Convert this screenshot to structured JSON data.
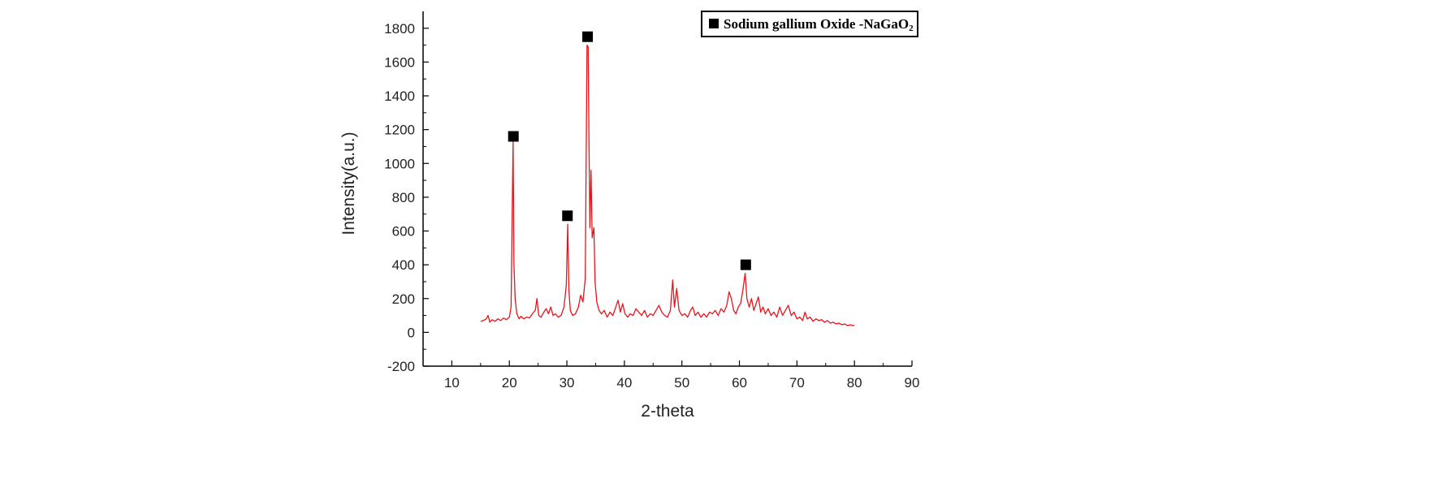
{
  "chart_data": {
    "type": "line",
    "title": "",
    "xlabel": "2-theta",
    "ylabel": "Intensity(a.u.)",
    "xlim": [
      5,
      90
    ],
    "ylim": [
      -200,
      1900
    ],
    "x_ticks": [
      10,
      20,
      30,
      40,
      50,
      60,
      70,
      80,
      90
    ],
    "y_ticks": [
      -200,
      0,
      200,
      400,
      600,
      800,
      1000,
      1200,
      1400,
      1600,
      1800
    ],
    "grid": false,
    "legend": {
      "position": "top-right",
      "entries": [
        {
          "marker": "square",
          "color": "#000000",
          "label_main": "Sodium gallium Oxide -NaGaO",
          "label_sub": "2"
        }
      ]
    },
    "series": [
      {
        "name": "Sodium gallium Oxide -NaGaO2",
        "color": "#e8141b",
        "points": [
          [
            15.0,
            65
          ],
          [
            15.5,
            70
          ],
          [
            16.0,
            80
          ],
          [
            16.3,
            100
          ],
          [
            16.6,
            60
          ],
          [
            17.0,
            75
          ],
          [
            17.5,
            65
          ],
          [
            18.0,
            80
          ],
          [
            18.5,
            70
          ],
          [
            19.0,
            85
          ],
          [
            19.5,
            75
          ],
          [
            20.0,
            90
          ],
          [
            20.3,
            150
          ],
          [
            20.5,
            730
          ],
          [
            20.65,
            1130
          ],
          [
            20.8,
            400
          ],
          [
            21.0,
            200
          ],
          [
            21.3,
            110
          ],
          [
            21.7,
            80
          ],
          [
            22.0,
            95
          ],
          [
            22.5,
            80
          ],
          [
            23.0,
            90
          ],
          [
            23.5,
            85
          ],
          [
            24.0,
            110
          ],
          [
            24.5,
            130
          ],
          [
            24.8,
            200
          ],
          [
            25.1,
            100
          ],
          [
            25.5,
            90
          ],
          [
            26.0,
            120
          ],
          [
            26.4,
            140
          ],
          [
            26.8,
            110
          ],
          [
            27.2,
            150
          ],
          [
            27.6,
            100
          ],
          [
            28.0,
            110
          ],
          [
            28.5,
            90
          ],
          [
            29.0,
            100
          ],
          [
            29.5,
            150
          ],
          [
            29.9,
            280
          ],
          [
            30.15,
            640
          ],
          [
            30.35,
            250
          ],
          [
            30.6,
            130
          ],
          [
            31.0,
            100
          ],
          [
            31.5,
            110
          ],
          [
            32.0,
            150
          ],
          [
            32.4,
            220
          ],
          [
            32.8,
            180
          ],
          [
            33.2,
            320
          ],
          [
            33.5,
            1700
          ],
          [
            33.7,
            1690
          ],
          [
            33.85,
            1100
          ],
          [
            34.0,
            620
          ],
          [
            34.2,
            960
          ],
          [
            34.4,
            560
          ],
          [
            34.7,
            620
          ],
          [
            34.9,
            300
          ],
          [
            35.2,
            180
          ],
          [
            35.6,
            130
          ],
          [
            36.0,
            110
          ],
          [
            36.5,
            130
          ],
          [
            37.0,
            90
          ],
          [
            37.5,
            120
          ],
          [
            38.0,
            100
          ],
          [
            38.5,
            150
          ],
          [
            38.9,
            190
          ],
          [
            39.3,
            120
          ],
          [
            39.7,
            170
          ],
          [
            40.1,
            110
          ],
          [
            40.6,
            90
          ],
          [
            41.0,
            110
          ],
          [
            41.5,
            100
          ],
          [
            42.0,
            140
          ],
          [
            42.5,
            120
          ],
          [
            43.0,
            100
          ],
          [
            43.5,
            130
          ],
          [
            44.0,
            90
          ],
          [
            44.5,
            110
          ],
          [
            45.0,
            100
          ],
          [
            45.5,
            130
          ],
          [
            46.0,
            160
          ],
          [
            46.5,
            120
          ],
          [
            47.0,
            100
          ],
          [
            47.5,
            90
          ],
          [
            48.0,
            130
          ],
          [
            48.4,
            310
          ],
          [
            48.7,
            150
          ],
          [
            49.1,
            260
          ],
          [
            49.5,
            130
          ],
          [
            50.0,
            100
          ],
          [
            50.5,
            110
          ],
          [
            51.0,
            90
          ],
          [
            51.5,
            130
          ],
          [
            51.9,
            150
          ],
          [
            52.3,
            100
          ],
          [
            52.8,
            120
          ],
          [
            53.3,
            90
          ],
          [
            53.8,
            110
          ],
          [
            54.3,
            90
          ],
          [
            54.8,
            120
          ],
          [
            55.3,
            110
          ],
          [
            55.8,
            130
          ],
          [
            56.3,
            100
          ],
          [
            56.8,
            140
          ],
          [
            57.3,
            120
          ],
          [
            57.8,
            160
          ],
          [
            58.2,
            240
          ],
          [
            58.6,
            200
          ],
          [
            59.0,
            130
          ],
          [
            59.4,
            110
          ],
          [
            59.8,
            150
          ],
          [
            60.2,
            170
          ],
          [
            60.6,
            250
          ],
          [
            61.0,
            350
          ],
          [
            61.3,
            200
          ],
          [
            61.7,
            150
          ],
          [
            62.1,
            200
          ],
          [
            62.5,
            130
          ],
          [
            62.9,
            170
          ],
          [
            63.3,
            210
          ],
          [
            63.7,
            120
          ],
          [
            64.1,
            150
          ],
          [
            64.5,
            110
          ],
          [
            65.0,
            140
          ],
          [
            65.5,
            100
          ],
          [
            66.0,
            120
          ],
          [
            66.5,
            90
          ],
          [
            67.0,
            150
          ],
          [
            67.5,
            100
          ],
          [
            68.0,
            130
          ],
          [
            68.5,
            160
          ],
          [
            69.0,
            100
          ],
          [
            69.5,
            120
          ],
          [
            70.0,
            80
          ],
          [
            70.5,
            90
          ],
          [
            71.0,
            70
          ],
          [
            71.4,
            120
          ],
          [
            71.8,
            80
          ],
          [
            72.3,
            90
          ],
          [
            72.8,
            65
          ],
          [
            73.3,
            80
          ],
          [
            73.8,
            70
          ],
          [
            74.3,
            75
          ],
          [
            74.8,
            60
          ],
          [
            75.3,
            70
          ],
          [
            75.8,
            55
          ],
          [
            76.3,
            60
          ],
          [
            76.8,
            50
          ],
          [
            77.3,
            55
          ],
          [
            77.8,
            45
          ],
          [
            78.3,
            50
          ],
          [
            78.8,
            40
          ],
          [
            79.3,
            45
          ],
          [
            79.7,
            40
          ],
          [
            80.0,
            42
          ]
        ]
      }
    ],
    "peak_markers": [
      {
        "x": 20.7,
        "y": 1160,
        "marker": "square"
      },
      {
        "x": 30.1,
        "y": 690,
        "marker": "square"
      },
      {
        "x": 33.6,
        "y": 1750,
        "marker": "square"
      },
      {
        "x": 61.1,
        "y": 400,
        "marker": "square"
      }
    ]
  }
}
